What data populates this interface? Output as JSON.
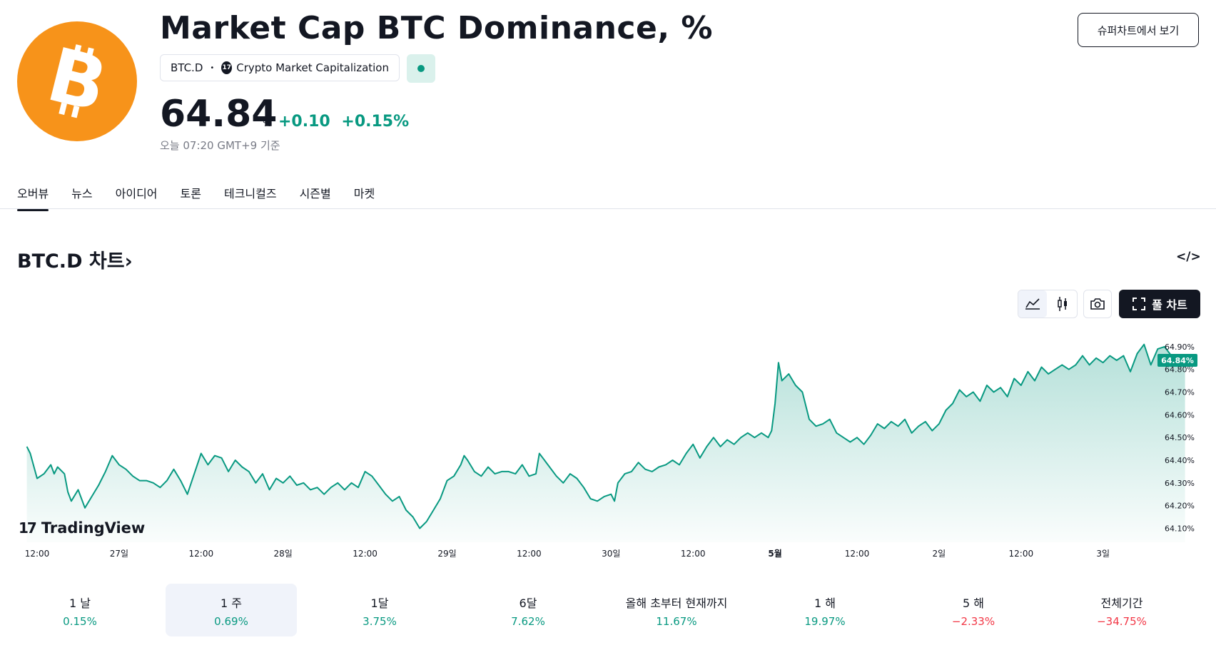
{
  "header": {
    "title": "Market Cap BTC Dominance, %",
    "symbol": "BTC.D",
    "separator": "•",
    "source_logo": "17",
    "source": "Crypto Market Capitalization",
    "price": "64.84",
    "price_unit": "%",
    "change_abs": "+0.10",
    "change_pct": "+0.15%",
    "as_of": "오늘 07:20 GMT+9 기준",
    "superchart_button": "슈퍼차트에서 보기",
    "market_status_icon": "market-open-dot",
    "accent_color": "#089981"
  },
  "tabs": [
    {
      "label": "오버뷰",
      "active": true
    },
    {
      "label": "뉴스"
    },
    {
      "label": "아이디어"
    },
    {
      "label": "토론"
    },
    {
      "label": "테크니컬즈"
    },
    {
      "label": "시즌별"
    },
    {
      "label": "마켓"
    }
  ],
  "chart_section": {
    "title": "BTC.D 차트",
    "title_arrow": "›",
    "embed_icon": "</>",
    "full_chart_button": "풀 차트",
    "watermark": "TradingView",
    "watermark_logo": "17"
  },
  "chart_data": {
    "type": "area",
    "color": "#089981",
    "ylim": [
      64.07,
      64.95
    ],
    "y_ticks": [
      "64.90%",
      "64.80%",
      "64.70%",
      "64.60%",
      "64.50%",
      "64.40%",
      "64.30%",
      "64.20%",
      "64.10%"
    ],
    "y_tick_values": [
      64.9,
      64.8,
      64.7,
      64.6,
      64.5,
      64.4,
      64.3,
      64.2,
      64.1
    ],
    "last_value_label": "64.84%",
    "last_value": 64.84,
    "x_range_hours": [
      -12,
      152
    ],
    "x_ticks": [
      {
        "label": "12:00",
        "t": 0
      },
      {
        "label": "27일",
        "t": 12
      },
      {
        "label": "12:00",
        "t": 24
      },
      {
        "label": "28일",
        "t": 36
      },
      {
        "label": "12:00",
        "t": 48
      },
      {
        "label": "29일",
        "t": 60
      },
      {
        "label": "12:00",
        "t": 72
      },
      {
        "label": "30일",
        "t": 84
      },
      {
        "label": "12:00",
        "t": 96
      },
      {
        "label": "5월",
        "t": 108,
        "bold": true
      },
      {
        "label": "12:00",
        "t": 120
      },
      {
        "label": "2일",
        "t": 132
      },
      {
        "label": "12:00",
        "t": 144
      },
      {
        "label": "3일",
        "t": 156
      }
    ],
    "series": [
      {
        "points": [
          [
            -1.5,
            64.46
          ],
          [
            -1,
            64.43
          ],
          [
            0,
            64.32
          ],
          [
            1,
            64.34
          ],
          [
            2,
            64.38
          ],
          [
            2.5,
            64.34
          ],
          [
            3,
            64.37
          ],
          [
            4,
            64.34
          ],
          [
            4.5,
            64.26
          ],
          [
            5,
            64.22
          ],
          [
            6,
            64.27
          ],
          [
            7,
            64.19
          ],
          [
            8,
            64.24
          ],
          [
            9,
            64.29
          ],
          [
            10,
            64.35
          ],
          [
            11,
            64.42
          ],
          [
            12,
            64.38
          ],
          [
            13,
            64.36
          ],
          [
            14,
            64.33
          ],
          [
            15,
            64.31
          ],
          [
            16,
            64.31
          ],
          [
            17,
            64.3
          ],
          [
            18,
            64.28
          ],
          [
            19,
            64.31
          ],
          [
            20,
            64.36
          ],
          [
            21,
            64.31
          ],
          [
            22,
            64.25
          ],
          [
            23,
            64.34
          ],
          [
            24,
            64.43
          ],
          [
            25,
            64.38
          ],
          [
            26,
            64.42
          ],
          [
            27,
            64.41
          ],
          [
            28,
            64.35
          ],
          [
            29,
            64.4
          ],
          [
            30,
            64.37
          ],
          [
            31,
            64.35
          ],
          [
            32,
            64.3
          ],
          [
            33,
            64.34
          ],
          [
            34,
            64.27
          ],
          [
            35,
            64.32
          ],
          [
            36,
            64.3
          ],
          [
            37,
            64.33
          ],
          [
            38,
            64.29
          ],
          [
            39,
            64.3
          ],
          [
            40,
            64.27
          ],
          [
            41,
            64.28
          ],
          [
            42,
            64.25
          ],
          [
            43,
            64.28
          ],
          [
            44,
            64.3
          ],
          [
            45,
            64.27
          ],
          [
            46,
            64.3
          ],
          [
            47,
            64.28
          ],
          [
            48,
            64.35
          ],
          [
            49,
            64.33
          ],
          [
            50,
            64.29
          ],
          [
            51,
            64.25
          ],
          [
            52,
            64.22
          ],
          [
            53,
            64.24
          ],
          [
            54,
            64.18
          ],
          [
            55,
            64.15
          ],
          [
            56,
            64.1
          ],
          [
            57,
            64.13
          ],
          [
            58,
            64.18
          ],
          [
            59,
            64.23
          ],
          [
            60,
            64.31
          ],
          [
            61,
            64.33
          ],
          [
            62,
            64.38
          ],
          [
            62.5,
            64.42
          ],
          [
            63,
            64.4
          ],
          [
            64,
            64.35
          ],
          [
            65,
            64.33
          ],
          [
            66,
            64.37
          ],
          [
            67,
            64.34
          ],
          [
            68,
            64.35
          ],
          [
            69,
            64.35
          ],
          [
            70,
            64.34
          ],
          [
            71,
            64.38
          ],
          [
            72,
            64.33
          ],
          [
            73,
            64.34
          ],
          [
            73.5,
            64.43
          ],
          [
            74,
            64.41
          ],
          [
            75,
            64.37
          ],
          [
            76,
            64.33
          ],
          [
            77,
            64.3
          ],
          [
            78,
            64.34
          ],
          [
            79,
            64.32
          ],
          [
            80,
            64.28
          ],
          [
            81,
            64.23
          ],
          [
            82,
            64.22
          ],
          [
            83,
            64.24
          ],
          [
            84,
            64.25
          ],
          [
            84.5,
            64.22
          ],
          [
            85,
            64.3
          ],
          [
            86,
            64.34
          ],
          [
            87,
            64.35
          ],
          [
            88,
            64.39
          ],
          [
            89,
            64.36
          ],
          [
            90,
            64.35
          ],
          [
            91,
            64.37
          ],
          [
            92,
            64.38
          ],
          [
            93,
            64.4
          ],
          [
            94,
            64.38
          ],
          [
            95,
            64.43
          ],
          [
            96,
            64.47
          ],
          [
            97,
            64.41
          ],
          [
            98,
            64.46
          ],
          [
            99,
            64.5
          ],
          [
            100,
            64.46
          ],
          [
            101,
            64.49
          ],
          [
            102,
            64.47
          ],
          [
            103,
            64.5
          ],
          [
            104,
            64.52
          ],
          [
            105,
            64.5
          ],
          [
            106,
            64.52
          ],
          [
            107,
            64.5
          ],
          [
            107.5,
            64.53
          ],
          [
            108,
            64.65
          ],
          [
            108.5,
            64.83
          ],
          [
            109,
            64.75
          ],
          [
            110,
            64.78
          ],
          [
            111,
            64.73
          ],
          [
            112,
            64.7
          ],
          [
            113,
            64.58
          ],
          [
            114,
            64.55
          ],
          [
            115,
            64.56
          ],
          [
            116,
            64.58
          ],
          [
            117,
            64.52
          ],
          [
            118,
            64.5
          ],
          [
            119,
            64.48
          ],
          [
            120,
            64.5
          ],
          [
            121,
            64.47
          ],
          [
            122,
            64.51
          ],
          [
            123,
            64.56
          ],
          [
            124,
            64.54
          ],
          [
            125,
            64.57
          ],
          [
            126,
            64.55
          ],
          [
            127,
            64.58
          ],
          [
            128,
            64.52
          ],
          [
            129,
            64.55
          ],
          [
            130,
            64.57
          ],
          [
            131,
            64.53
          ],
          [
            132,
            64.56
          ],
          [
            133,
            64.62
          ],
          [
            134,
            64.65
          ],
          [
            135,
            64.71
          ],
          [
            136,
            64.68
          ],
          [
            137,
            64.7
          ],
          [
            138,
            64.66
          ],
          [
            139,
            64.73
          ],
          [
            140,
            64.7
          ],
          [
            141,
            64.72
          ],
          [
            142,
            64.68
          ],
          [
            143,
            64.76
          ],
          [
            144,
            64.73
          ],
          [
            145,
            64.79
          ],
          [
            146,
            64.75
          ],
          [
            147,
            64.81
          ],
          [
            148,
            64.78
          ],
          [
            149,
            64.8
          ],
          [
            150,
            64.82
          ],
          [
            151,
            64.8
          ],
          [
            152,
            64.82
          ],
          [
            153,
            64.86
          ],
          [
            154,
            64.82
          ],
          [
            155,
            64.85
          ],
          [
            156,
            64.83
          ],
          [
            157,
            64.86
          ],
          [
            158,
            64.84
          ],
          [
            159,
            64.86
          ],
          [
            160,
            64.79
          ],
          [
            161,
            64.87
          ],
          [
            162,
            64.91
          ],
          [
            163,
            64.82
          ],
          [
            164,
            64.89
          ],
          [
            165,
            64.9
          ],
          [
            166,
            64.86
          ],
          [
            167,
            64.85
          ],
          [
            168,
            64.84
          ]
        ]
      }
    ]
  },
  "periods": [
    {
      "label": "1 날",
      "value": "0.15%",
      "sign": "pos"
    },
    {
      "label": "1 주",
      "value": "0.69%",
      "sign": "pos",
      "selected": true
    },
    {
      "label": "1달",
      "value": "3.75%",
      "sign": "pos"
    },
    {
      "label": "6달",
      "value": "7.62%",
      "sign": "pos"
    },
    {
      "label": "올해 초부터 현재까지",
      "value": "11.67%",
      "sign": "pos"
    },
    {
      "label": "1 해",
      "value": "19.97%",
      "sign": "pos"
    },
    {
      "label": "5 해",
      "value": "−2.33%",
      "sign": "neg"
    },
    {
      "label": "전체기간",
      "value": "−34.75%",
      "sign": "neg"
    }
  ]
}
